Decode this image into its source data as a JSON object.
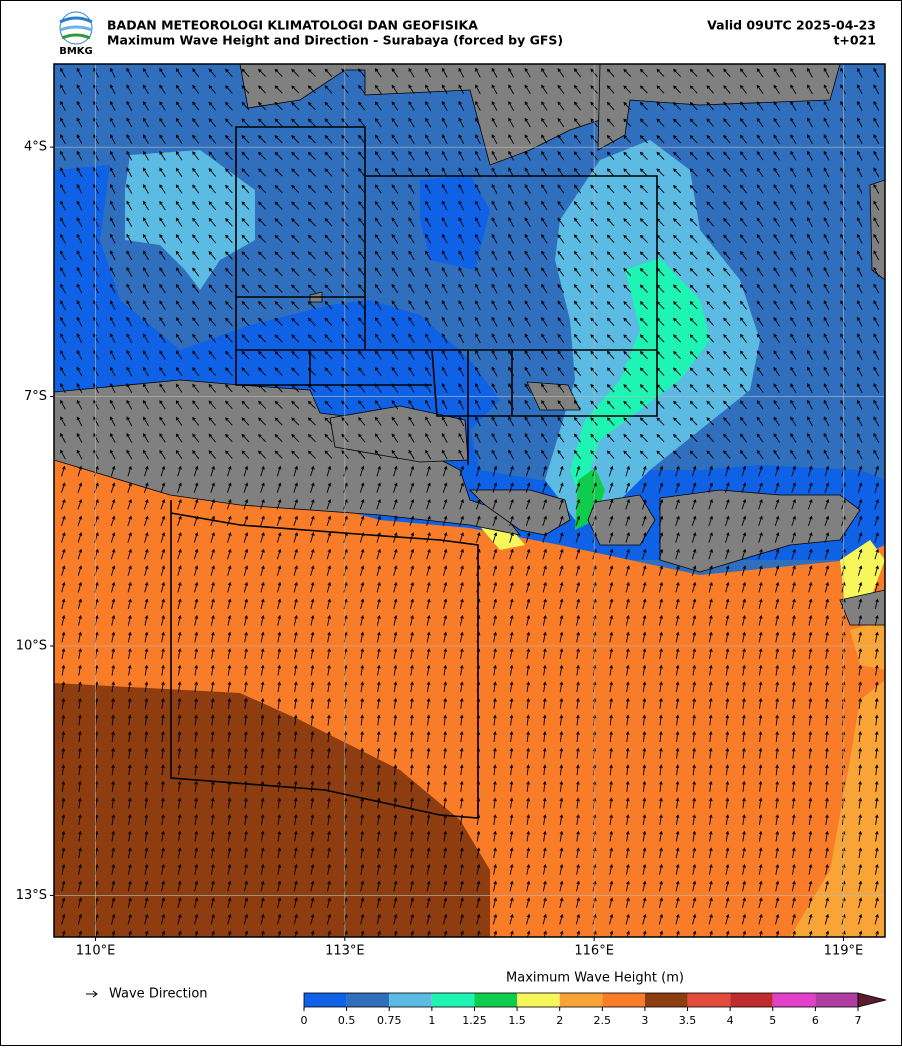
{
  "header": {
    "logo_text": "BMKG",
    "agency": "BADAN METEOROLOGI KLIMATOLOGI DAN GEOFISIKA",
    "subtitle": "Maximum Wave Height and Direction - Surabaya (forced by GFS)",
    "valid": "Valid 09UTC 2025-04-23",
    "lead": "t+021"
  },
  "map": {
    "xlim": [
      109.5,
      119.5
    ],
    "ylim": [
      -13.5,
      -3
    ],
    "xticks": [
      {
        "value": 110,
        "label": "110°E"
      },
      {
        "value": 113,
        "label": "113°E"
      },
      {
        "value": 116,
        "label": "116°E"
      },
      {
        "value": 119,
        "label": "119°E"
      }
    ],
    "yticks": [
      {
        "value": -4,
        "label": "4°S"
      },
      {
        "value": -7,
        "label": "7°S"
      },
      {
        "value": -10,
        "label": "10°S"
      },
      {
        "value": -13,
        "label": "13°S"
      }
    ],
    "grid": true
  },
  "legend": {
    "label": "Wave Direction"
  },
  "colorbar": {
    "label": "Maximum Wave Height (m)",
    "levels": [
      0,
      0.5,
      0.75,
      1,
      1.25,
      1.5,
      2,
      2.5,
      3,
      3.5,
      4,
      5,
      6,
      7
    ],
    "colors": [
      "#0f62e6",
      "#2f6fbd",
      "#5bbbe3",
      "#1ef4b4",
      "#0fcd4c",
      "#f7f75c",
      "#f9a436",
      "#f97c29",
      "#8d3d0f",
      "#e34b3b",
      "#c12a2f",
      "#e23fcb",
      "#b03ba2"
    ],
    "extend_color": "#5c1b2a"
  }
}
